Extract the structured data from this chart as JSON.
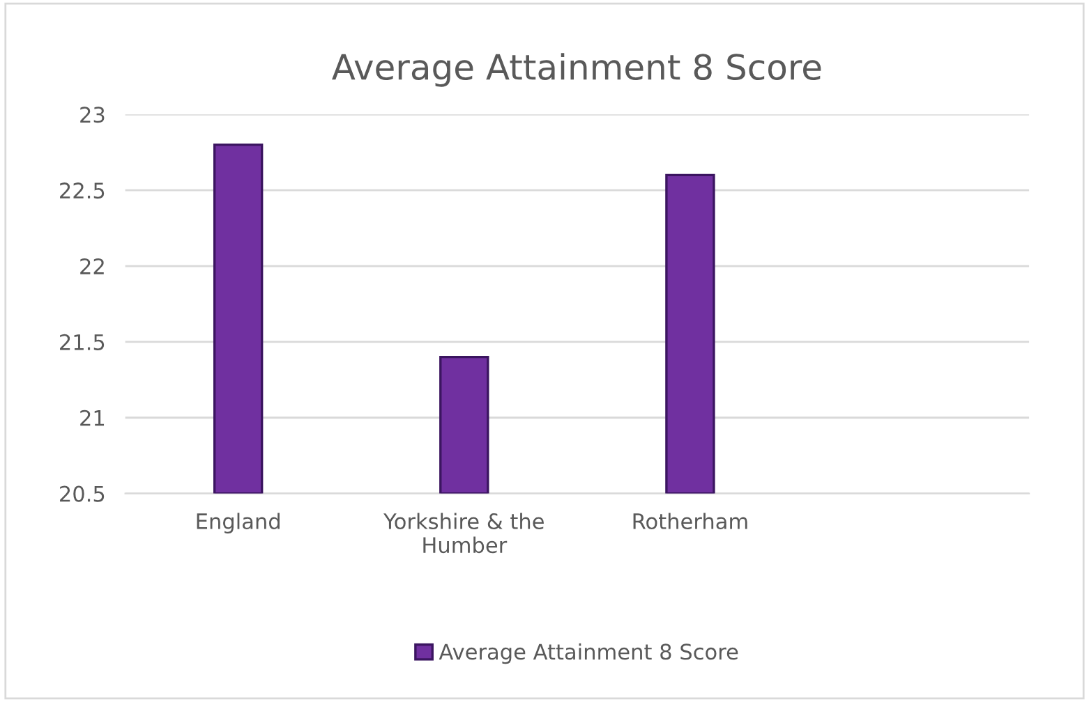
{
  "chart_data": {
    "type": "bar",
    "title": "Average Attainment 8 Score",
    "categories": [
      "England",
      "Yorkshire & the\nHumber",
      "Rotherham",
      null
    ],
    "series": [
      {
        "name": "Average Attainment 8 Score",
        "color": "#7030a0",
        "values": [
          22.8,
          21.4,
          22.6,
          null
        ]
      }
    ],
    "ylim": [
      20.5,
      23
    ],
    "yticks": [
      20.5,
      21,
      21.5,
      22,
      22.5,
      23
    ],
    "grid": "y",
    "legend": "bottom"
  }
}
